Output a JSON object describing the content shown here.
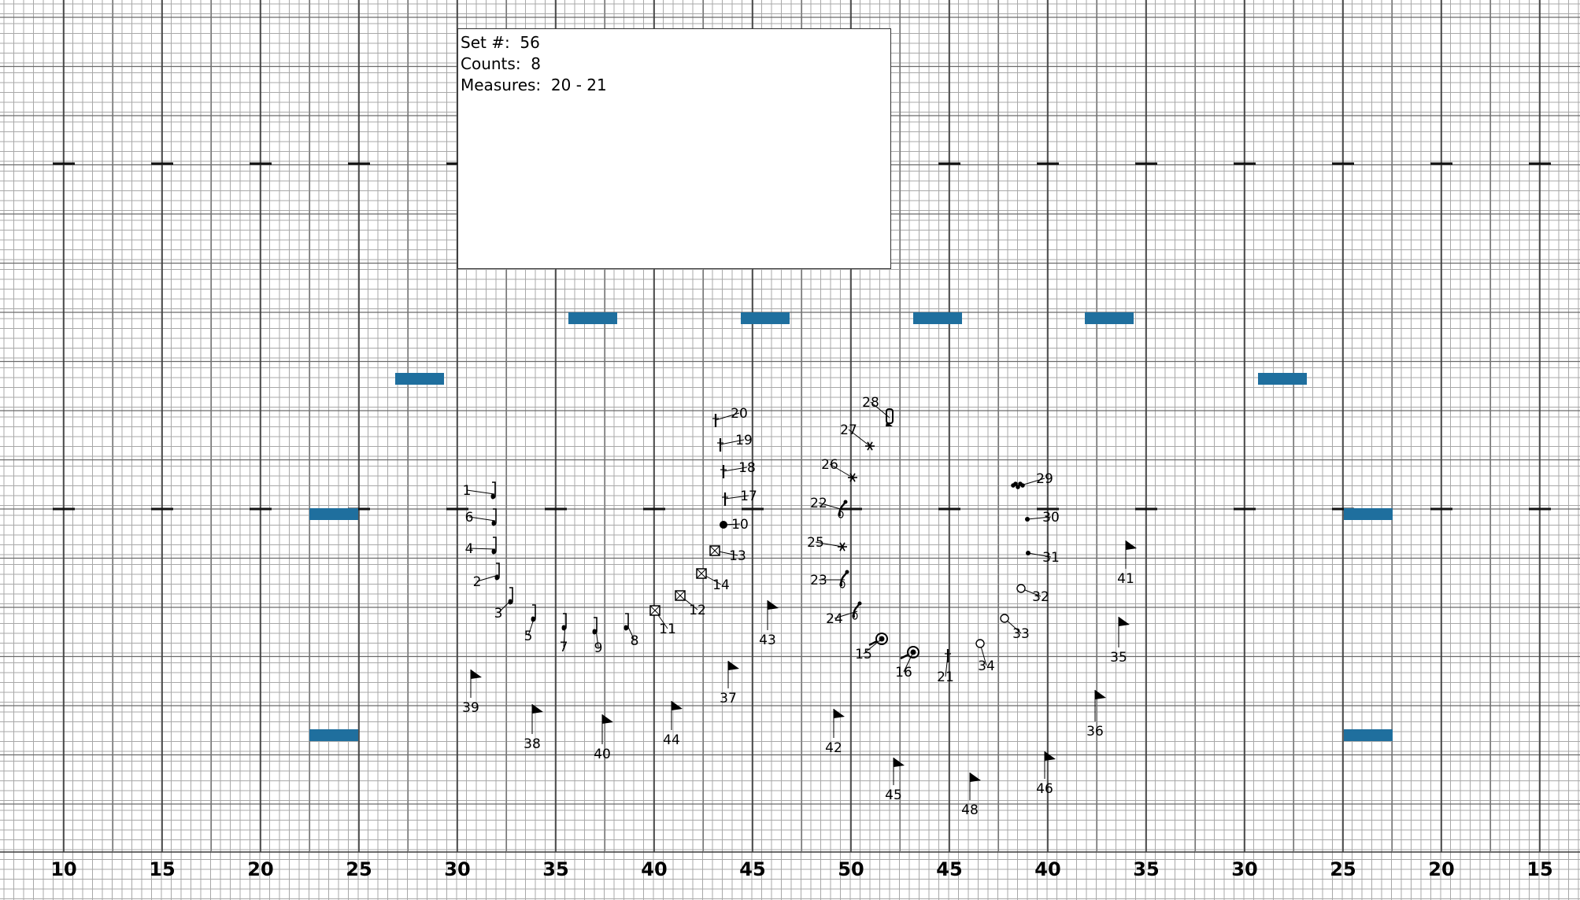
{
  "set_info": {
    "set_label": "Set #:",
    "set_value": "56",
    "counts_label": "Counts:",
    "counts_value": "8",
    "measures_label": "Measures:",
    "measures_value": "20 - 21"
  },
  "yard_labels": [
    "10",
    "15",
    "20",
    "25",
    "30",
    "35",
    "40",
    "45",
    "50",
    "45",
    "40",
    "35",
    "30",
    "25",
    "20",
    "15"
  ],
  "colors": {
    "grid_minor": "#a8a8a8",
    "grid_major": "#3a3a3a",
    "hash_mark": "#111111",
    "marker": "#1f6f9e"
  },
  "performers": [
    {
      "id": "1",
      "type": "sax"
    },
    {
      "id": "2",
      "type": "sax"
    },
    {
      "id": "3",
      "type": "sax"
    },
    {
      "id": "4",
      "type": "sax"
    },
    {
      "id": "5",
      "type": "sax"
    },
    {
      "id": "6",
      "type": "sax"
    },
    {
      "id": "7",
      "type": "sax"
    },
    {
      "id": "8",
      "type": "sax"
    },
    {
      "id": "9",
      "type": "sax"
    },
    {
      "id": "10",
      "type": "dot"
    },
    {
      "id": "11",
      "type": "box"
    },
    {
      "id": "12",
      "type": "box"
    },
    {
      "id": "13",
      "type": "box"
    },
    {
      "id": "14",
      "type": "box"
    },
    {
      "id": "15",
      "type": "tuba"
    },
    {
      "id": "16",
      "type": "tuba"
    },
    {
      "id": "17",
      "type": "clarinet"
    },
    {
      "id": "18",
      "type": "clarinet"
    },
    {
      "id": "19",
      "type": "clarinet"
    },
    {
      "id": "20",
      "type": "clarinet"
    },
    {
      "id": "21",
      "type": "clarinet"
    },
    {
      "id": "22",
      "type": "horn"
    },
    {
      "id": "23",
      "type": "horn"
    },
    {
      "id": "24",
      "type": "horn"
    },
    {
      "id": "25",
      "type": "star"
    },
    {
      "id": "26",
      "type": "star"
    },
    {
      "id": "27",
      "type": "star"
    },
    {
      "id": "28",
      "type": "drum"
    },
    {
      "id": "29",
      "type": "cluster"
    },
    {
      "id": "30",
      "type": "smalldot"
    },
    {
      "id": "31",
      "type": "smalldot"
    },
    {
      "id": "32",
      "type": "circle"
    },
    {
      "id": "33",
      "type": "circle"
    },
    {
      "id": "34",
      "type": "circle"
    },
    {
      "id": "35",
      "type": "flag"
    },
    {
      "id": "36",
      "type": "flag"
    },
    {
      "id": "37",
      "type": "flag"
    },
    {
      "id": "38",
      "type": "flag"
    },
    {
      "id": "39",
      "type": "flag"
    },
    {
      "id": "40",
      "type": "flag"
    },
    {
      "id": "41",
      "type": "flag"
    },
    {
      "id": "42",
      "type": "flag"
    },
    {
      "id": "43",
      "type": "flag"
    },
    {
      "id": "44",
      "type": "flag"
    },
    {
      "id": "45",
      "type": "flag"
    },
    {
      "id": "46",
      "type": "flag"
    },
    {
      "id": "48",
      "type": "flag"
    }
  ]
}
